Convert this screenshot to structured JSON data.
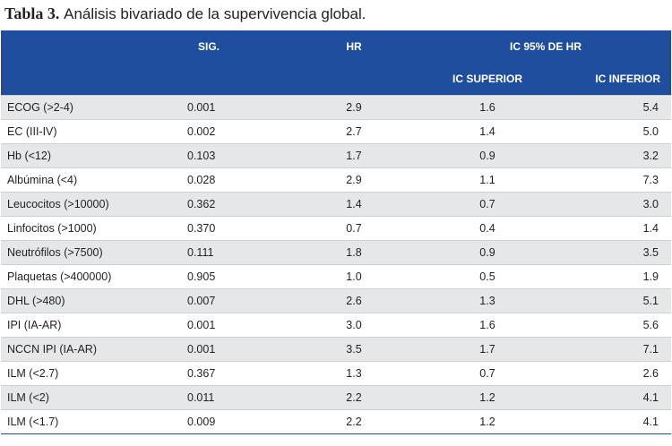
{
  "caption": {
    "number": "Tabla 3.",
    "title": "Análisis bivariado de la supervivencia global."
  },
  "header": {
    "variable": "",
    "sig": "SIG.",
    "hr": "HR",
    "ic_group": "IC 95% DE HR",
    "ic_superior": "IC SUPERIOR",
    "ic_inferior": "IC INFERIOR"
  },
  "rows": [
    {
      "variable": "ECOG (>2-4)",
      "sig": "0.001",
      "hr": "2.9",
      "ic_superior": "1.6",
      "ic_inferior": "5.4"
    },
    {
      "variable": "EC (III-IV)",
      "sig": "0.002",
      "hr": "2.7",
      "ic_superior": "1.4",
      "ic_inferior": "5.0"
    },
    {
      "variable": "Hb (<12)",
      "sig": "0.103",
      "hr": "1.7",
      "ic_superior": "0.9",
      "ic_inferior": "3.2"
    },
    {
      "variable": "Albúmina (<4)",
      "sig": "0.028",
      "hr": "2.9",
      "ic_superior": "1.1",
      "ic_inferior": "7.3"
    },
    {
      "variable": "Leucocitos (>10000)",
      "sig": "0.362",
      "hr": "1.4",
      "ic_superior": "0.7",
      "ic_inferior": "3.0"
    },
    {
      "variable": "Linfocitos (>1000)",
      "sig": "0.370",
      "hr": "0.7",
      "ic_superior": "0.4",
      "ic_inferior": "1.4"
    },
    {
      "variable": "Neutrófilos (>7500)",
      "sig": "0.111",
      "hr": "1.8",
      "ic_superior": "0.9",
      "ic_inferior": "3.5"
    },
    {
      "variable": "Plaquetas (>400000)",
      "sig": "0.905",
      "hr": "1.0",
      "ic_superior": "0.5",
      "ic_inferior": "1.9"
    },
    {
      "variable": "DHL (>480)",
      "sig": "0.007",
      "hr": "2.6",
      "ic_superior": "1.3",
      "ic_inferior": "5.1"
    },
    {
      "variable": "IPI (IA-AR)",
      "sig": "0.001",
      "hr": "3.0",
      "ic_superior": "1.6",
      "ic_inferior": "5.6"
    },
    {
      "variable": "NCCN IPI (IA-AR)",
      "sig": "0.001",
      "hr": "3.5",
      "ic_superior": "1.7",
      "ic_inferior": "7.1"
    },
    {
      "variable": "ILM (<2.7)",
      "sig": "0.367",
      "hr": "1.3",
      "ic_superior": "0.7",
      "ic_inferior": "2.6"
    },
    {
      "variable": "ILM (<2)",
      "sig": "0.011",
      "hr": "2.2",
      "ic_superior": "1.2",
      "ic_inferior": "4.1"
    },
    {
      "variable": "ILM (<1.7)",
      "sig": "0.009",
      "hr": "2.2",
      "ic_superior": "1.2",
      "ic_inferior": "4.1"
    }
  ],
  "colors": {
    "header_bg": "#1e4e9d",
    "header_text": "#ffffff",
    "stripe": "#e6e7e8"
  }
}
